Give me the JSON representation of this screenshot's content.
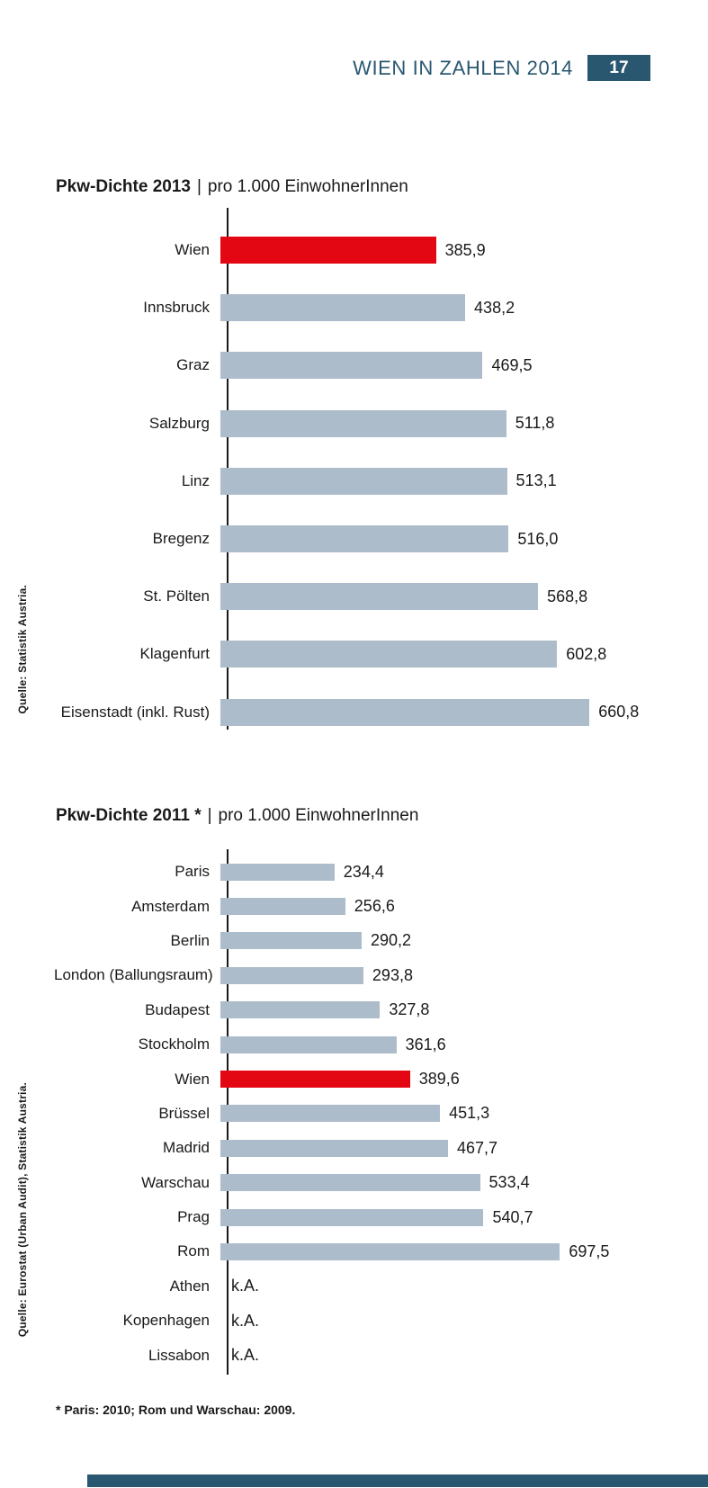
{
  "header": {
    "title": "WIEN IN ZAHLEN 2014",
    "page_number": "17"
  },
  "colors": {
    "accent_teal": "#2a5770",
    "bar_gray": "#adbcca",
    "bar_red": "#e30613",
    "text": "#1a1a1a"
  },
  "chart_data": [
    {
      "type": "bar",
      "orientation": "horizontal",
      "title": "Pkw-Dichte 2013",
      "title_separator": "|",
      "subtitle": "pro 1.000 EinwohnerInnen",
      "source": "Quelle: Statistik Austria.",
      "categories": [
        "Wien",
        "Innsbruck",
        "Graz",
        "Salzburg",
        "Linz",
        "Bregenz",
        "St. Pölten",
        "Klagenfurt",
        "Eisenstadt (inkl. Rust)"
      ],
      "values": [
        385.9,
        438.2,
        469.5,
        511.8,
        513.1,
        516.0,
        568.8,
        602.8,
        660.8
      ],
      "value_labels": [
        "385,9",
        "438,2",
        "469,5",
        "511,8",
        "513,1",
        "516,0",
        "568,8",
        "602,8",
        "660,8"
      ],
      "highlight_category": "Wien",
      "xlim": [
        0,
        720
      ],
      "grid": false,
      "legend": false
    },
    {
      "type": "bar",
      "orientation": "horizontal",
      "title": "Pkw-Dichte 2011 *",
      "title_separator": "|",
      "subtitle": "pro 1.000 EinwohnerInnen",
      "source": "Quelle: Eurostat (Urban Audit),  Statistik Austria.",
      "footnote": "* Paris: 2010; Rom und Warschau: 2009.",
      "categories": [
        "Paris",
        "Amsterdam",
        "Berlin",
        "London (Ballungsraum)",
        "Budapest",
        "Stockholm",
        "Wien",
        "Brüssel",
        "Madrid",
        "Warschau",
        "Prag",
        "Rom",
        "Athen",
        "Kopenhagen",
        "Lissabon"
      ],
      "values": [
        234.4,
        256.6,
        290.2,
        293.8,
        327.8,
        361.6,
        389.6,
        451.3,
        467.7,
        533.4,
        540.7,
        697.5,
        null,
        null,
        null
      ],
      "value_labels": [
        "234,4",
        "256,6",
        "290,2",
        "293,8",
        "327,8",
        "361,6",
        "389,6",
        "451,3",
        "467,7",
        "533,4",
        "540,7",
        "697,5",
        "k.A.",
        "k.A.",
        "k.A."
      ],
      "highlight_category": "Wien",
      "xlim": [
        0,
        830
      ],
      "grid": false,
      "legend": false
    }
  ]
}
